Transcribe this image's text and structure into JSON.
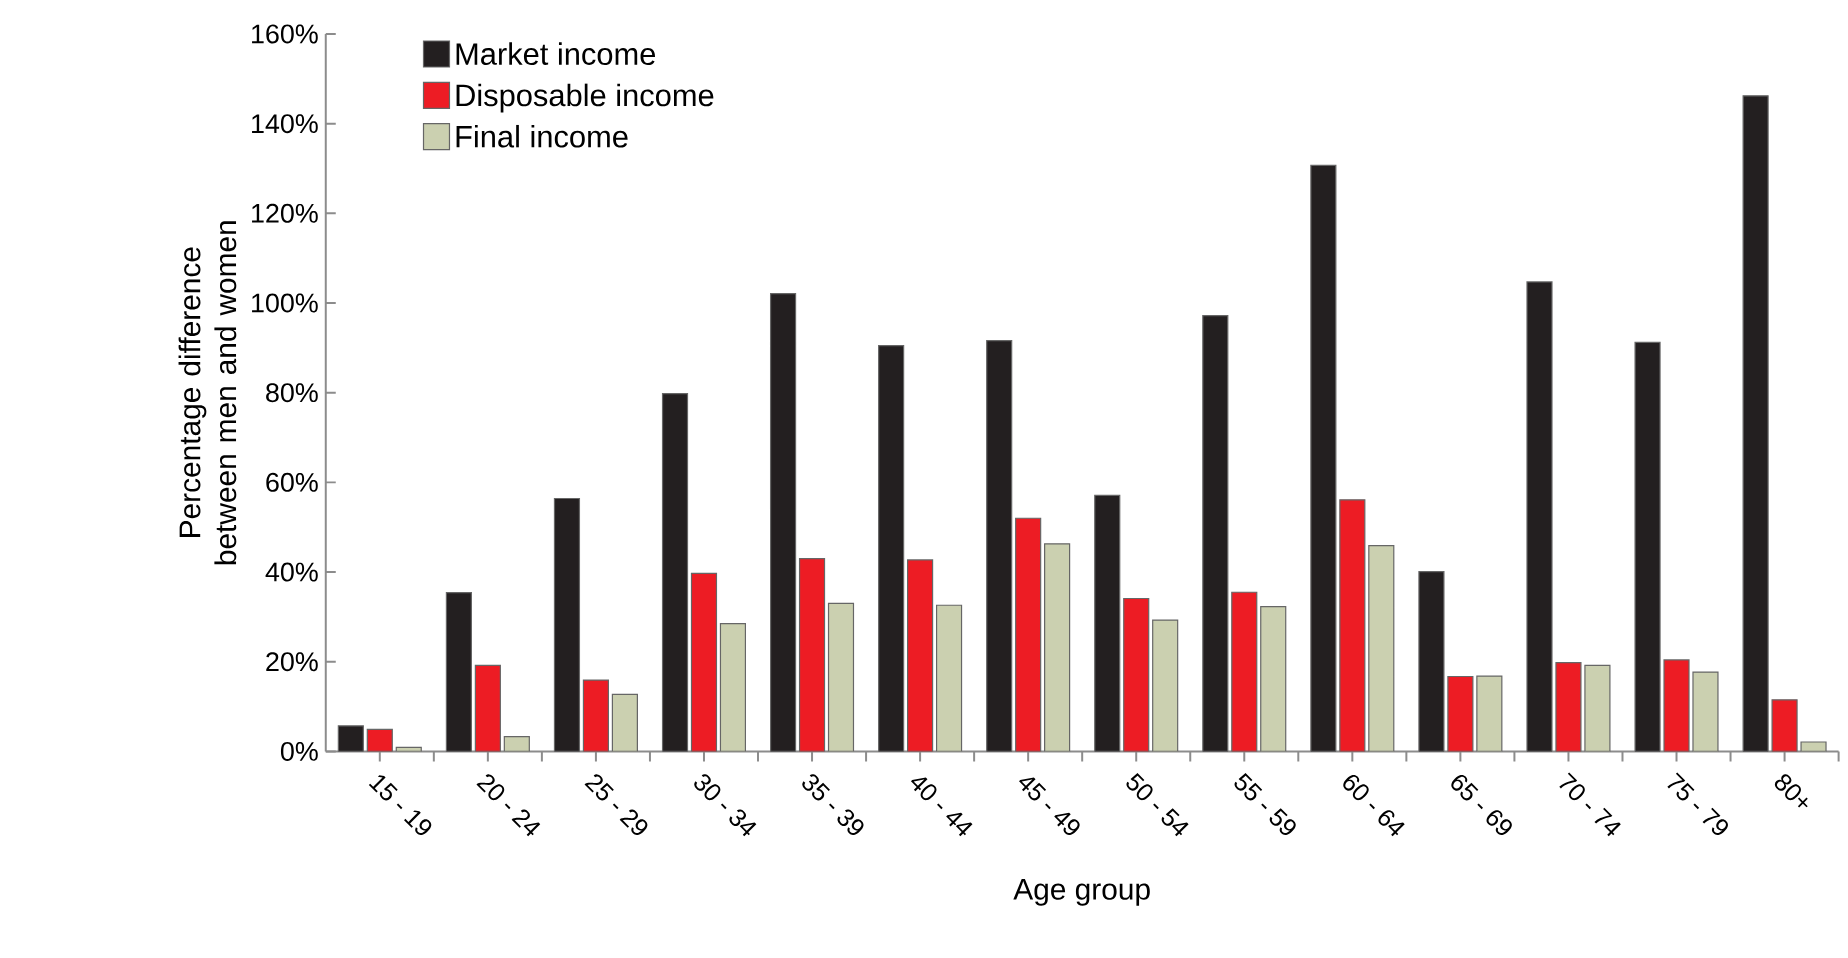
{
  "chart_data": {
    "type": "bar",
    "xlabel": "Age group",
    "ylabel": "Percentage difference between  men and women",
    "categories": [
      "15 - 19",
      "20 - 24",
      "25 - 29",
      "30 - 34",
      "35 - 39",
      "40 - 44",
      "45 - 49",
      "50 - 54",
      "55 - 59",
      "60 - 64",
      "65 - 69",
      "70 - 74",
      "75 - 79",
      "80+"
    ],
    "series": [
      {
        "name": "Market income",
        "color": "#231f20",
        "values": [
          5.7,
          35.4,
          56.4,
          79.8,
          102.1,
          90.5,
          91.6,
          57.1,
          97.2,
          130.7,
          40.1,
          104.7,
          91.2,
          146.2
        ]
      },
      {
        "name": "Disposable income",
        "color": "#ed1c24",
        "values": [
          4.9,
          19.2,
          15.9,
          39.7,
          43.0,
          42.7,
          52.0,
          34.1,
          35.5,
          56.1,
          16.7,
          19.8,
          20.4,
          11.5
        ]
      },
      {
        "name": "Final income",
        "color": "#cbd0b0",
        "values": [
          0.9,
          3.3,
          12.7,
          28.5,
          33.0,
          32.6,
          46.3,
          29.3,
          32.3,
          45.9,
          16.8,
          19.2,
          17.7,
          2.1
        ]
      }
    ],
    "ylim": [
      0,
      160
    ],
    "yticks": [
      {
        "value": 0,
        "label": "0%"
      },
      {
        "value": 20,
        "label": "20%"
      },
      {
        "value": 40,
        "label": "40%"
      },
      {
        "value": 60,
        "label": "60%"
      },
      {
        "value": 80,
        "label": "80%"
      },
      {
        "value": 100,
        "label": "100%"
      },
      {
        "value": 120,
        "label": "120%"
      },
      {
        "value": 140,
        "label": "140%"
      },
      {
        "value": 160,
        "label": "160%"
      }
    ],
    "legend": "top left"
  }
}
